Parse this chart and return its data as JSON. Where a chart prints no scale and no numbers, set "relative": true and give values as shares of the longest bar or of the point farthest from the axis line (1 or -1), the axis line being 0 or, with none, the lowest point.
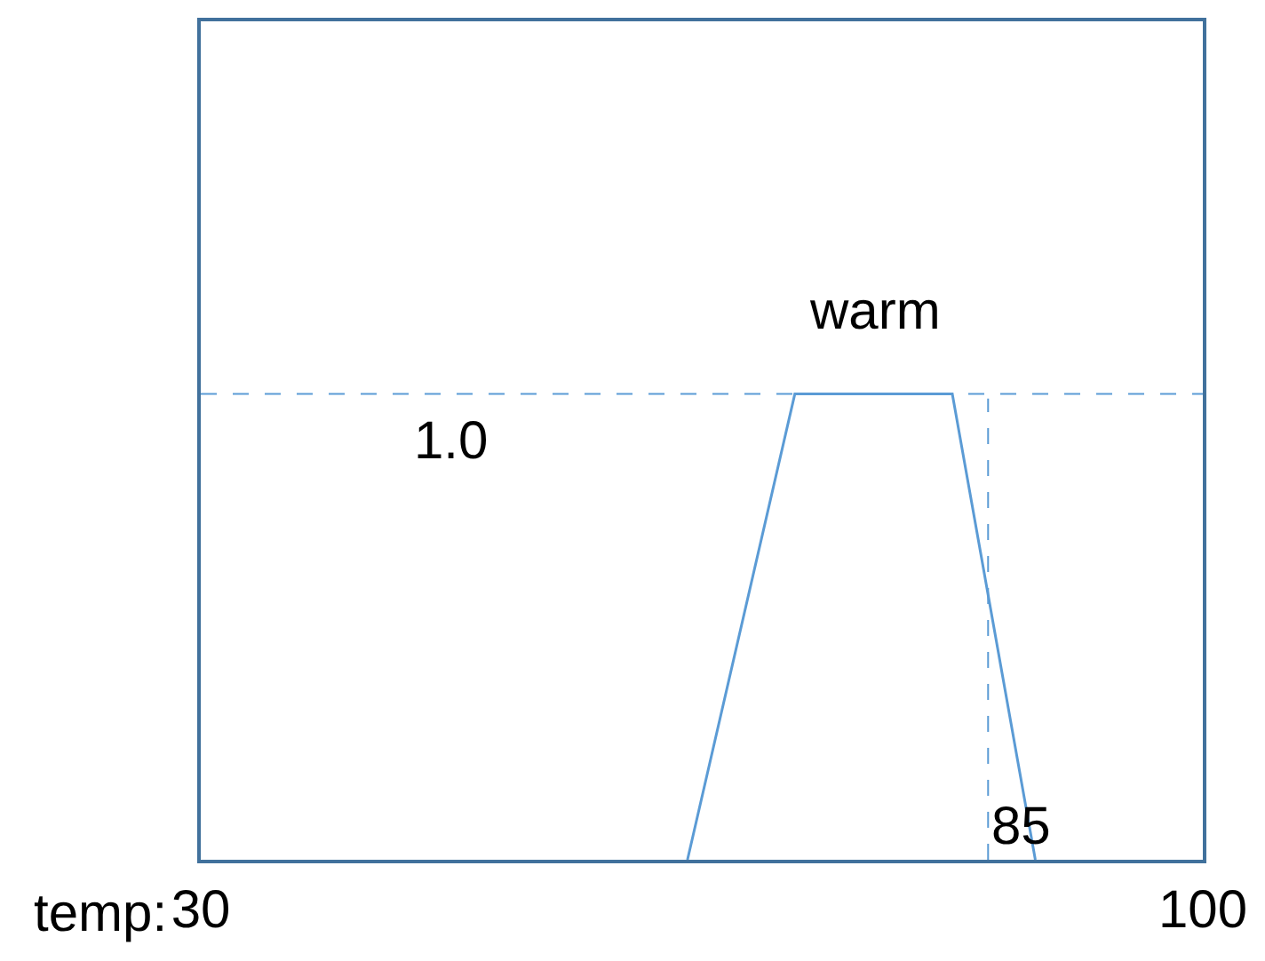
{
  "chart_data": {
    "type": "line",
    "xlabel": "temp:",
    "x": [
      64,
      71.5,
      82.5,
      88.3
    ],
    "series": [
      {
        "name": "warm",
        "color": "#5b9bd5",
        "values": [
          0,
          1,
          1,
          0
        ]
      }
    ],
    "xlim": [
      30,
      100
    ],
    "xticks": [
      30,
      100
    ],
    "relative": true,
    "ref_lines": [
      {
        "axis": "y",
        "value": 1.0,
        "label": "1.0",
        "color": "#5b9bd5",
        "line_style": "dashed"
      },
      {
        "axis": "x",
        "value": 85,
        "label": "85",
        "color": "#5b9bd5",
        "line_style": "dashed"
      }
    ],
    "legend": false,
    "marker": "none",
    "line_style": "solid"
  }
}
